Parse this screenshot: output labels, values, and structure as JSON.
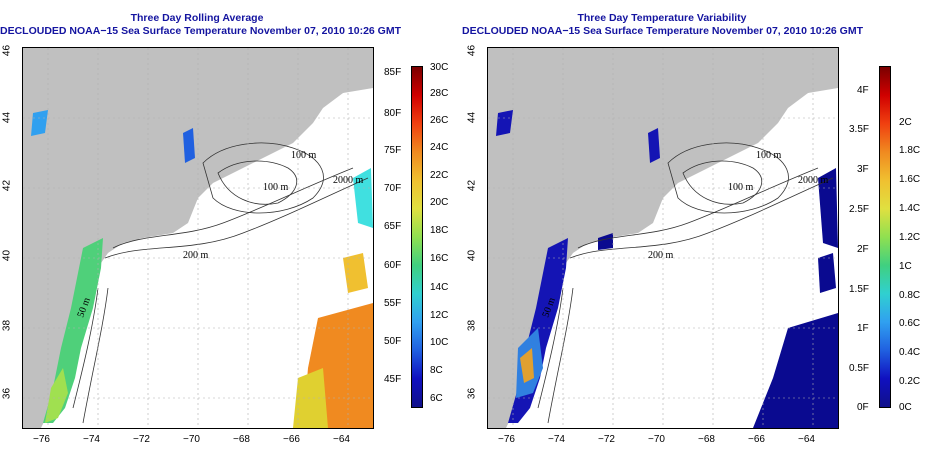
{
  "panels": [
    {
      "title_line1": "Three Day Rolling Average",
      "title_line2": "DECLOUDED NOAA−15 Sea Surface Temperature November 07, 2010 10:26 GMT",
      "colorbar_left": [
        "85F",
        "80F",
        "75F",
        "70F",
        "65F",
        "60F",
        "55F",
        "50F",
        "45F"
      ],
      "colorbar_right": [
        "30C",
        "28C",
        "26C",
        "24C",
        "22C",
        "20C",
        "18C",
        "16C",
        "14C",
        "12C",
        "10C",
        "8C",
        "6C"
      ]
    },
    {
      "title_line1": "Three Day Temperature Variability",
      "title_line2": "DECLOUDED NOAA−15 Sea Surface Temperature November 07, 2010 10:26 GMT",
      "colorbar_left": [
        "4F",
        "3.5F",
        "3F",
        "2.5F",
        "2F",
        "1.5F",
        "1F",
        "0.5F",
        "0F"
      ],
      "colorbar_right": [
        "2C",
        "1.8C",
        "1.6C",
        "1.4C",
        "1.2C",
        "1C",
        "0.8C",
        "0.6C",
        "0.4C",
        "0.2C",
        "0C"
      ]
    }
  ],
  "x_ticks": [
    "−76",
    "−74",
    "−72",
    "−70",
    "−68",
    "−66",
    "−64"
  ],
  "y_ticks": [
    "46",
    "44",
    "42",
    "40",
    "38",
    "36"
  ],
  "contour_labels": [
    "100 m",
    "100 m",
    "2000 m",
    "100 m",
    "200 m",
    "50 m",
    "50 m"
  ],
  "colors": {
    "land": "#c0c0c0",
    "contour": "#333333",
    "title": "#1414a0"
  }
}
